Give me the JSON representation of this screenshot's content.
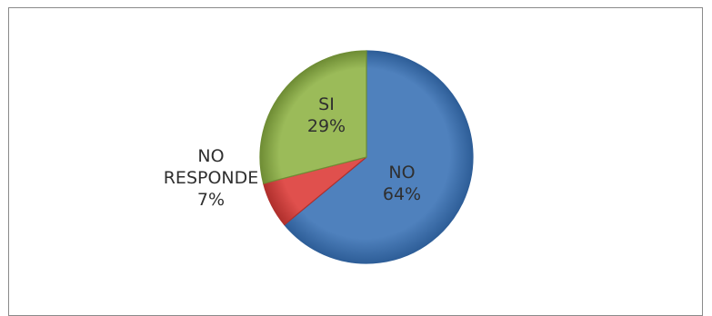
{
  "chart_data": {
    "type": "pie",
    "title": "",
    "slices": [
      {
        "label_lines": [
          "NO",
          "64%"
        ],
        "category": "NO",
        "value": 64,
        "color": "#4f81bd",
        "color_dark": "#2e5e98"
      },
      {
        "label_lines": [
          "NO",
          "RESPONDE",
          "7%"
        ],
        "category": "NO RESPONDE",
        "value": 7,
        "color": "#e0504d",
        "color_dark": "#b0302d"
      },
      {
        "label_lines": [
          "SI",
          "29%"
        ],
        "category": "SI",
        "value": 29,
        "color": "#9bbb59",
        "color_dark": "#6f8d35"
      }
    ],
    "start_angle_deg": 0,
    "direction": "clockwise",
    "legend": "none",
    "data_labels": "category-and-percent"
  }
}
